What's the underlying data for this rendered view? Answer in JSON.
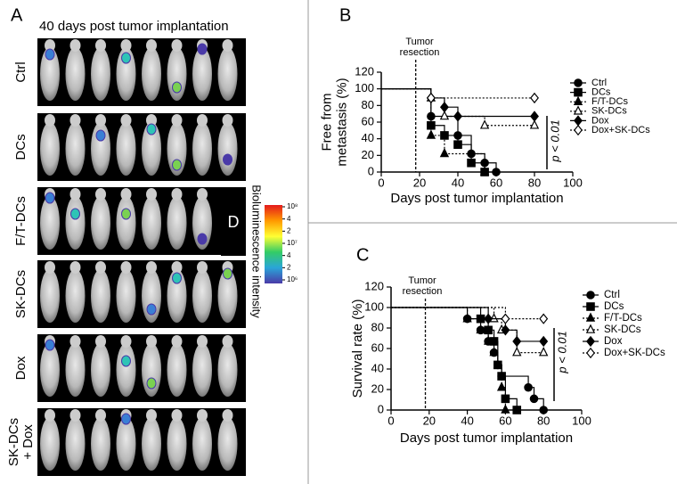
{
  "panel_a": {
    "label": "A",
    "title": "40 days post tumor implantation",
    "rows": [
      [
        "Ctrl"
      ],
      [
        "DCs"
      ],
      [
        "F/T-DCs"
      ],
      [
        "SK-DCs"
      ],
      [
        "Dox"
      ],
      [
        "SK-DCs",
        "+ Dox"
      ]
    ],
    "inset_label": "D",
    "colorbar": {
      "title": "Bioluminescence intensity",
      "ticks": [
        "10⁸",
        "4",
        "2",
        "10⁷",
        "4",
        "2",
        "10⁶"
      ]
    }
  },
  "chart_data": [
    {
      "type": "line",
      "panel": "B",
      "color": "#000000",
      "ylabel": [
        "Free from",
        "metastasis (%)"
      ],
      "xlabel": "Days post tumor implantation",
      "annotation": [
        "Tumor",
        "resection"
      ],
      "resection_x": 18,
      "pvalue": "p < 0.01",
      "xlim": [
        0,
        100
      ],
      "xticks": [
        0,
        20,
        40,
        60,
        80,
        100
      ],
      "ylim": [
        0,
        120
      ],
      "yticks": [
        0,
        20,
        40,
        60,
        80,
        100,
        120
      ],
      "series": [
        {
          "name": "Ctrl",
          "marker": "circle",
          "dash": false,
          "x": [
            0,
            26,
            40,
            47,
            54,
            60
          ],
          "values": [
            100,
            67,
            44,
            22,
            11,
            0
          ]
        },
        {
          "name": "DCs",
          "marker": "square",
          "dash": false,
          "x": [
            0,
            26,
            33,
            40,
            47,
            54
          ],
          "values": [
            100,
            56,
            44,
            33,
            11,
            0
          ]
        },
        {
          "name": "F/T-DCs",
          "marker": "triangle",
          "dash": true,
          "x": [
            0,
            26,
            33,
            54
          ],
          "values": [
            100,
            44,
            22,
            0
          ]
        },
        {
          "name": "SK-DCs",
          "marker": "triangle-open",
          "dash": true,
          "x": [
            0,
            26,
            33,
            54,
            80
          ],
          "values": [
            100,
            89,
            67,
            56,
            56
          ]
        },
        {
          "name": "Dox",
          "marker": "diamond",
          "dash": false,
          "x": [
            0,
            26,
            33,
            40,
            80
          ],
          "values": [
            100,
            89,
            78,
            67,
            67
          ]
        },
        {
          "name": "Dox+SK-DCs",
          "marker": "diamond-open",
          "dash": true,
          "x": [
            0,
            26,
            80
          ],
          "values": [
            100,
            89,
            89
          ]
        }
      ]
    },
    {
      "type": "line",
      "panel": "C",
      "color": "#000000",
      "ylabel": [
        "Survival rate (%)"
      ],
      "xlabel": "Days post tumor implantation",
      "annotation": [
        "Tumor",
        "resection"
      ],
      "resection_x": 18,
      "pvalue": "p < 0.01",
      "xlim": [
        0,
        100
      ],
      "xticks": [
        0,
        20,
        40,
        60,
        80,
        100
      ],
      "ylim": [
        0,
        120
      ],
      "yticks": [
        0,
        20,
        40,
        60,
        80,
        100,
        120
      ],
      "series": [
        {
          "name": "Ctrl",
          "marker": "circle",
          "dash": false,
          "x": [
            0,
            40,
            47,
            51,
            54,
            56,
            58,
            72,
            75,
            80
          ],
          "values": [
            100,
            89,
            78,
            67,
            56,
            44,
            33,
            22,
            11,
            0
          ]
        },
        {
          "name": "DCs",
          "marker": "square",
          "dash": false,
          "x": [
            0,
            47,
            51,
            54,
            56,
            58,
            60,
            66
          ],
          "values": [
            100,
            89,
            78,
            67,
            44,
            33,
            11,
            0
          ]
        },
        {
          "name": "F/T-DCs",
          "marker": "triangle",
          "dash": true,
          "x": [
            0,
            40,
            47,
            51,
            54,
            56,
            58,
            60
          ],
          "values": [
            100,
            89,
            78,
            67,
            56,
            44,
            22,
            0
          ]
        },
        {
          "name": "SK-DCs",
          "marker": "triangle-open",
          "dash": true,
          "x": [
            0,
            54,
            58,
            66,
            80
          ],
          "values": [
            100,
            89,
            78,
            56,
            56
          ]
        },
        {
          "name": "Dox",
          "marker": "diamond",
          "dash": false,
          "x": [
            0,
            51,
            60,
            66,
            80
          ],
          "values": [
            100,
            89,
            78,
            67,
            67
          ]
        },
        {
          "name": "Dox+SK-DCs",
          "marker": "diamond-open",
          "dash": true,
          "x": [
            0,
            60,
            80
          ],
          "values": [
            100,
            89,
            89
          ]
        }
      ]
    }
  ]
}
